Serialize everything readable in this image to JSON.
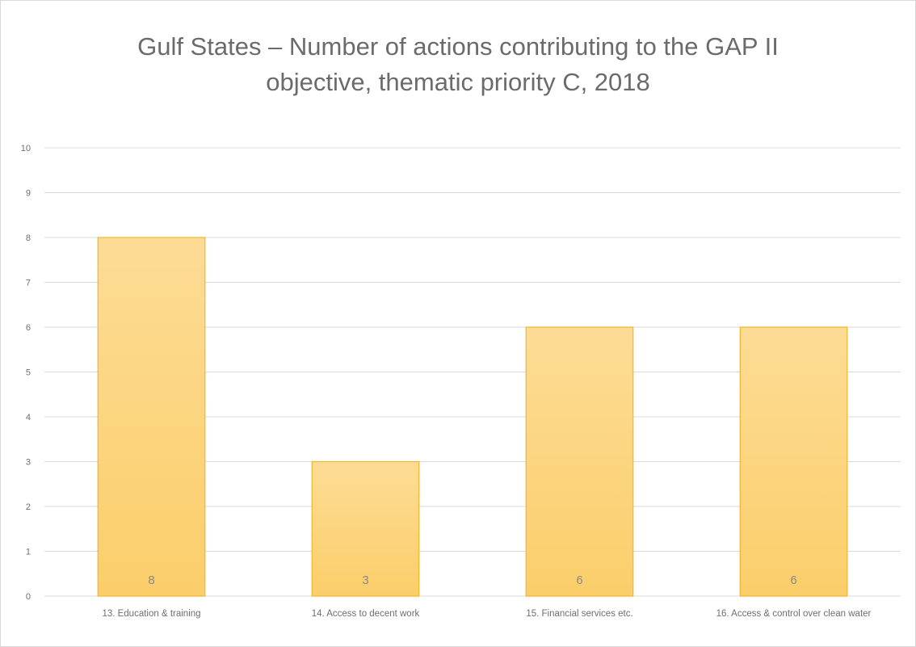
{
  "chart_data": {
    "type": "bar",
    "title": "Gulf States – Number of actions contributing to the GAP II objective, thematic priority C, 2018",
    "title_lines": [
      "Gulf States – Number of actions contributing to the GAP II",
      "objective, thematic priority C, 2018"
    ],
    "categories": [
      "13. Education & training",
      "14. Access to decent work",
      "15. Financial services etc.",
      "16. Access & control over clean water"
    ],
    "values": [
      8,
      3,
      6,
      6
    ],
    "data_labels": [
      "8",
      "3",
      "6",
      "6"
    ],
    "y_ticks": [
      0,
      1,
      2,
      3,
      4,
      5,
      6,
      7,
      8,
      9,
      10
    ],
    "ylim": [
      0,
      10
    ],
    "xlabel": "",
    "ylabel": "",
    "grid": true,
    "legend": "none",
    "colors": {
      "bar_fill": "#fbd37a",
      "bar_stroke": "#f2b52a",
      "gridline": "#d9d9d9"
    }
  }
}
